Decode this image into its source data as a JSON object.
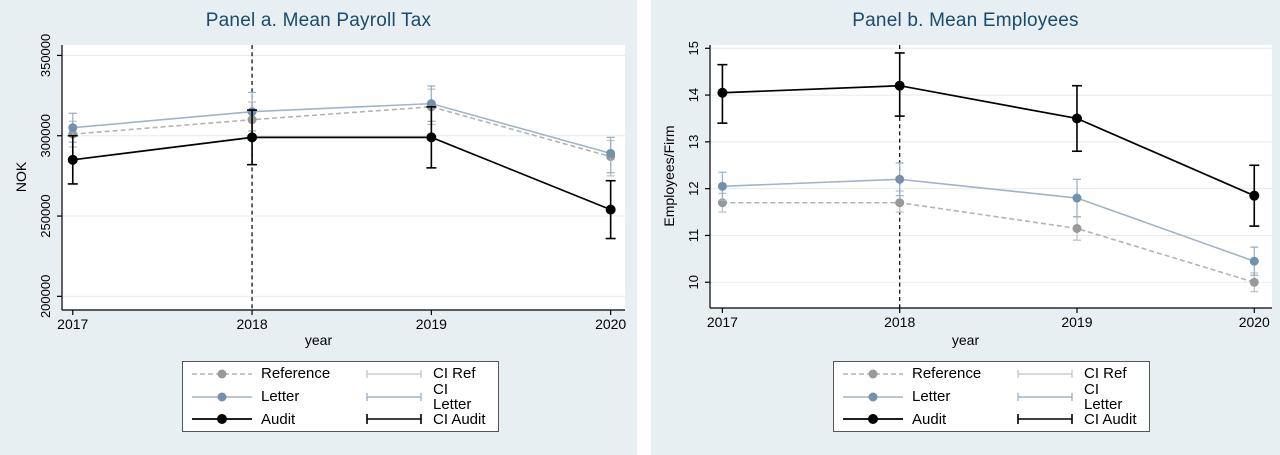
{
  "chart_data": [
    {
      "type": "line",
      "panel": "a",
      "title": "Panel a. Mean Payroll Tax",
      "xlabel": "year",
      "ylabel": "NOK",
      "x": [
        2017,
        2018,
        2019,
        2020
      ],
      "x_tick_labels": [
        "2017",
        "2018",
        "2019",
        "2020"
      ],
      "xlim": [
        2016.94,
        2020.08
      ],
      "yticks": [
        200000,
        250000,
        300000,
        350000
      ],
      "y_tick_labels": [
        "200000",
        "250000",
        "300000",
        "350000"
      ],
      "ylim": [
        191500,
        356500
      ],
      "grid": true,
      "vline_x": 2018,
      "vline_style": "dashed",
      "legend_position": "below",
      "series": [
        {
          "name": "Reference",
          "line_style": "dashed",
          "line_color": "#b3b3b3",
          "marker_color": "#999999",
          "ci_color": "#c2c2c2",
          "values": [
            301000,
            310000,
            318000,
            287000
          ],
          "ci_low": [
            293000,
            299000,
            307000,
            275000
          ],
          "ci_high": [
            309000,
            321000,
            329000,
            297000
          ]
        },
        {
          "name": "Letter",
          "line_style": "solid",
          "line_color": "#a1b4c5",
          "marker_color": "#7391ad",
          "ci_color": "#9fb3c4",
          "values": [
            305000,
            315000,
            320000,
            289000
          ],
          "ci_low": [
            296000,
            303000,
            309000,
            277000
          ],
          "ci_high": [
            314000,
            327000,
            331000,
            299000
          ]
        },
        {
          "name": "Audit",
          "line_style": "solid",
          "line_color": "#000000",
          "marker_color": "#000000",
          "ci_color": "#000000",
          "values": [
            285000,
            299000,
            299000,
            254000
          ],
          "ci_low": [
            270000,
            282000,
            280000,
            236000
          ],
          "ci_high": [
            300000,
            316000,
            318000,
            272000
          ]
        }
      ]
    },
    {
      "type": "line",
      "panel": "b",
      "title": "Panel b. Mean Employees",
      "xlabel": "year",
      "ylabel": "Employees/Firm",
      "x": [
        2017,
        2018,
        2019,
        2020
      ],
      "x_tick_labels": [
        "2017",
        "2018",
        "2019",
        "2020"
      ],
      "xlim": [
        2016.93,
        2020.1
      ],
      "yticks": [
        10,
        11,
        12,
        13,
        14,
        15
      ],
      "y_tick_labels": [
        "10",
        "11",
        "12",
        "13",
        "14",
        "15"
      ],
      "ylim": [
        9.45,
        15.07
      ],
      "grid": true,
      "vline_x": 2018,
      "vline_style": "dashed",
      "legend_position": "below",
      "series": [
        {
          "name": "Reference",
          "line_style": "dashed",
          "line_color": "#b3b3b3",
          "marker_color": "#999999",
          "ci_color": "#c2c2c2",
          "values": [
            11.7,
            11.7,
            11.15,
            10.0
          ],
          "ci_low": [
            11.5,
            11.5,
            10.9,
            9.8
          ],
          "ci_high": [
            11.9,
            11.95,
            11.4,
            10.2
          ]
        },
        {
          "name": "Letter",
          "line_style": "solid",
          "line_color": "#a1b4c5",
          "marker_color": "#7391ad",
          "ci_color": "#9fb3c4",
          "values": [
            12.05,
            12.2,
            11.8,
            10.45
          ],
          "ci_low": [
            11.75,
            11.85,
            11.4,
            10.15
          ],
          "ci_high": [
            12.35,
            12.55,
            12.2,
            10.75
          ]
        },
        {
          "name": "Audit",
          "line_style": "solid",
          "line_color": "#000000",
          "marker_color": "#000000",
          "ci_color": "#000000",
          "values": [
            14.05,
            14.2,
            13.5,
            11.85
          ],
          "ci_low": [
            13.4,
            13.55,
            12.8,
            11.2
          ],
          "ci_high": [
            14.65,
            14.9,
            14.2,
            12.5
          ]
        }
      ]
    }
  ],
  "legend": {
    "rows": [
      {
        "series_label": "Reference",
        "ci_label": "CI Ref"
      },
      {
        "series_label": "Letter",
        "ci_label": "CI Letter"
      },
      {
        "series_label": "Audit",
        "ci_label": "CI Audit"
      }
    ]
  },
  "colors": {
    "figure_background": "#e8eff3",
    "plot_background": "#ffffff",
    "title": "#1b4a6e",
    "axis": "#000000",
    "gridline": "#e4ebef",
    "vline": "#000000",
    "reference_line": "#b3b3b3",
    "reference_marker": "#999999",
    "reference_ci": "#c2c2c2",
    "letter_line": "#a1b4c5",
    "letter_marker": "#7391ad",
    "letter_ci": "#9fb3c4",
    "audit_line": "#000000",
    "audit_marker": "#000000",
    "audit_ci": "#000000",
    "legend_border": "#555555",
    "legend_background": "#ffffff"
  }
}
